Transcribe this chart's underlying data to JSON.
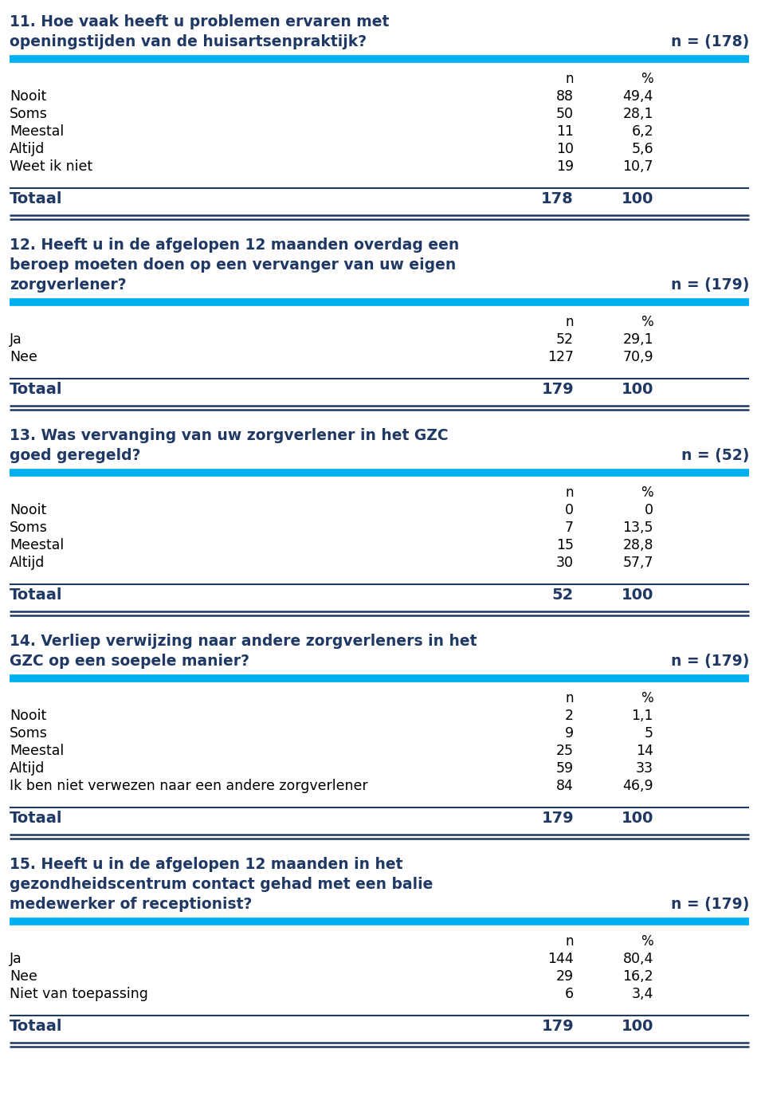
{
  "background_color": "#ffffff",
  "cyan_color": "#00B0F0",
  "dark_blue": "#1F3864",
  "body_text_color": "#000000",
  "sections": [
    {
      "question": [
        "11. Hoe vaak heeft u problemen ervaren met",
        "openingstijden van de huisartsenpraktijk?"
      ],
      "n_label": "n = (178)",
      "rows": [
        {
          "label": "Nooit",
          "n": "88",
          "pct": "49,4"
        },
        {
          "label": "Soms",
          "n": "50",
          "pct": "28,1"
        },
        {
          "label": "Meestal",
          "n": "11",
          "pct": "6,2"
        },
        {
          "label": "Altijd",
          "n": "10",
          "pct": "5,6"
        },
        {
          "label": "Weet ik niet",
          "n": "19",
          "pct": "10,7"
        }
      ],
      "totaal_n": "178",
      "totaal_pct": "100"
    },
    {
      "question": [
        "12. Heeft u in de afgelopen 12 maanden overdag een",
        "beroep moeten doen op een vervanger van uw eigen",
        "zorgverlener?"
      ],
      "n_label": "n = (179)",
      "rows": [
        {
          "label": "Ja",
          "n": "52",
          "pct": "29,1"
        },
        {
          "label": "Nee",
          "n": "127",
          "pct": "70,9"
        }
      ],
      "totaal_n": "179",
      "totaal_pct": "100"
    },
    {
      "question": [
        "13. Was vervanging van uw zorgverlener in het GZC",
        "goed geregeld?"
      ],
      "n_label": "n = (52)",
      "rows": [
        {
          "label": "Nooit",
          "n": "0",
          "pct": "0"
        },
        {
          "label": "Soms",
          "n": "7",
          "pct": "13,5"
        },
        {
          "label": "Meestal",
          "n": "15",
          "pct": "28,8"
        },
        {
          "label": "Altijd",
          "n": "30",
          "pct": "57,7"
        }
      ],
      "totaal_n": "52",
      "totaal_pct": "100"
    },
    {
      "question": [
        "14. Verliep verwijzing naar andere zorgverleners in het",
        "GZC op een soepele manier?"
      ],
      "n_label": "n = (179)",
      "rows": [
        {
          "label": "Nooit",
          "n": "2",
          "pct": "1,1"
        },
        {
          "label": "Soms",
          "n": "9",
          "pct": "5"
        },
        {
          "label": "Meestal",
          "n": "25",
          "pct": "14"
        },
        {
          "label": "Altijd",
          "n": "59",
          "pct": "33"
        },
        {
          "label": "Ik ben niet verwezen naar een andere zorgverlener",
          "n": "84",
          "pct": "46,9"
        }
      ],
      "totaal_n": "179",
      "totaal_pct": "100"
    },
    {
      "question": [
        "15. Heeft u in de afgelopen 12 maanden in het",
        "gezondheidscentrum contact gehad met een balie",
        "medewerker of receptionist?"
      ],
      "n_label": "n = (179)",
      "rows": [
        {
          "label": "Ja",
          "n": "144",
          "pct": "80,4"
        },
        {
          "label": "Nee",
          "n": "29",
          "pct": "16,2"
        },
        {
          "label": "Niet van toepassing",
          "n": "6",
          "pct": "3,4"
        }
      ],
      "totaal_n": "179",
      "totaal_pct": "100"
    }
  ]
}
